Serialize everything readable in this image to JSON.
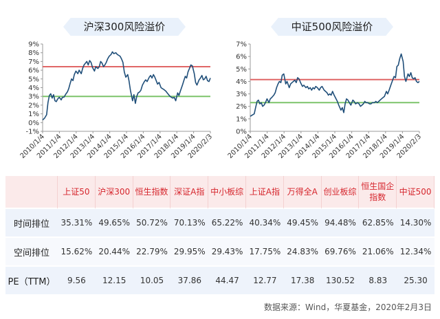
{
  "chart_data": [
    {
      "type": "line",
      "title": "沪深300风险溢价",
      "y_ticks": [
        "-1%",
        "0%",
        "1%",
        "2%",
        "3%",
        "4%",
        "5%",
        "6%",
        "7%",
        "8%",
        "9%"
      ],
      "ylim": [
        -1,
        9
      ],
      "x_ticks": [
        "2010/1/4",
        "2011/1/4",
        "2012/1/4",
        "2013/1/4",
        "2014/1/4",
        "2015/1/4",
        "2016/1/4",
        "2017/1/4",
        "2018/1/4",
        "2019/1/4",
        "2020/2/3"
      ],
      "xlim": [
        "2010-01-04",
        "2020-02-03"
      ],
      "reference_lines": [
        {
          "value": 6.4,
          "color": "#e06666"
        },
        {
          "value": 3.0,
          "color": "#7cc46a"
        }
      ],
      "series": [
        {
          "color": "#1f4e79",
          "points": [
            [
              "2010-01-04",
              0.3
            ],
            [
              "2010-02-15",
              0.5
            ],
            [
              "2010-04-01",
              0.9
            ],
            [
              "2010-05-01",
              2.3
            ],
            [
              "2010-06-01",
              3.1
            ],
            [
              "2010-07-01",
              3.3
            ],
            [
              "2010-08-01",
              2.8
            ],
            [
              "2010-09-01",
              3.2
            ],
            [
              "2010-10-01",
              2.5
            ],
            [
              "2010-11-01",
              2.4
            ],
            [
              "2010-12-01",
              2.7
            ],
            [
              "2011-01-04",
              2.9
            ],
            [
              "2011-02-15",
              2.6
            ],
            [
              "2011-03-15",
              2.9
            ],
            [
              "2011-04-15",
              2.9
            ],
            [
              "2011-06-01",
              3.3
            ],
            [
              "2011-07-01",
              3.5
            ],
            [
              "2011-08-01",
              3.9
            ],
            [
              "2011-09-01",
              4.5
            ],
            [
              "2011-10-01",
              5.0
            ],
            [
              "2011-11-01",
              4.8
            ],
            [
              "2011-12-01",
              5.5
            ],
            [
              "2012-01-04",
              5.9
            ],
            [
              "2012-02-15",
              5.6
            ],
            [
              "2012-03-15",
              6.0
            ],
            [
              "2012-05-01",
              5.6
            ],
            [
              "2012-06-01",
              6.2
            ],
            [
              "2012-07-01",
              6.6
            ],
            [
              "2012-08-01",
              6.8
            ],
            [
              "2012-09-01",
              7.0
            ],
            [
              "2012-10-01",
              6.6
            ],
            [
              "2012-11-01",
              7.1
            ],
            [
              "2012-12-01",
              6.9
            ],
            [
              "2013-01-04",
              6.3
            ],
            [
              "2013-02-15",
              5.9
            ],
            [
              "2013-03-15",
              6.4
            ],
            [
              "2013-05-01",
              6.2
            ],
            [
              "2013-06-01",
              6.4
            ],
            [
              "2013-07-01",
              7.0
            ],
            [
              "2013-08-01",
              6.8
            ],
            [
              "2013-09-01",
              6.4
            ],
            [
              "2013-10-01",
              6.6
            ],
            [
              "2013-11-01",
              6.9
            ],
            [
              "2013-12-01",
              7.3
            ],
            [
              "2014-01-04",
              7.6
            ],
            [
              "2014-02-15",
              7.8
            ],
            [
              "2014-03-15",
              8.1
            ],
            [
              "2014-04-15",
              7.9
            ],
            [
              "2014-06-01",
              8.0
            ],
            [
              "2014-07-01",
              7.8
            ],
            [
              "2014-08-01",
              7.7
            ],
            [
              "2014-09-01",
              7.6
            ],
            [
              "2014-10-01",
              7.3
            ],
            [
              "2014-11-01",
              6.9
            ],
            [
              "2014-12-01",
              5.8
            ],
            [
              "2015-01-04",
              5.2
            ],
            [
              "2015-02-15",
              5.5
            ],
            [
              "2015-03-15",
              4.8
            ],
            [
              "2015-04-15",
              3.7
            ],
            [
              "2015-06-01",
              2.5
            ],
            [
              "2015-07-01",
              3.2
            ],
            [
              "2015-08-01",
              2.2
            ],
            [
              "2015-09-01",
              3.0
            ],
            [
              "2015-10-01",
              3.4
            ],
            [
              "2015-11-01",
              3.5
            ],
            [
              "2015-12-01",
              3.7
            ],
            [
              "2016-01-04",
              4.3
            ],
            [
              "2016-02-15",
              4.7
            ],
            [
              "2016-03-15",
              4.9
            ],
            [
              "2016-04-15",
              4.7
            ],
            [
              "2016-06-01",
              5.2
            ],
            [
              "2016-07-01",
              5.4
            ],
            [
              "2016-08-01",
              5.1
            ],
            [
              "2016-09-01",
              5.5
            ],
            [
              "2016-10-01",
              5.2
            ],
            [
              "2016-11-01",
              4.8
            ],
            [
              "2016-12-01",
              4.4
            ],
            [
              "2017-01-04",
              4.6
            ],
            [
              "2017-02-15",
              4.0
            ],
            [
              "2017-03-15",
              3.9
            ],
            [
              "2017-04-15",
              3.8
            ],
            [
              "2017-06-01",
              3.6
            ],
            [
              "2017-07-01",
              3.4
            ],
            [
              "2017-08-01",
              3.2
            ],
            [
              "2017-09-01",
              3.0
            ],
            [
              "2017-10-01",
              2.9
            ],
            [
              "2017-11-01",
              2.8
            ],
            [
              "2017-12-01",
              2.9
            ],
            [
              "2018-01-04",
              2.5
            ],
            [
              "2018-02-15",
              3.4
            ],
            [
              "2018-03-15",
              3.1
            ],
            [
              "2018-04-15",
              3.6
            ],
            [
              "2018-06-01",
              4.3
            ],
            [
              "2018-07-01",
              4.8
            ],
            [
              "2018-08-01",
              5.3
            ],
            [
              "2018-09-01",
              5.1
            ],
            [
              "2018-10-01",
              5.8
            ],
            [
              "2018-11-01",
              6.2
            ],
            [
              "2018-12-01",
              6.6
            ],
            [
              "2019-01-04",
              6.5
            ],
            [
              "2019-02-15",
              5.6
            ],
            [
              "2019-03-15",
              4.6
            ],
            [
              "2019-04-15",
              4.3
            ],
            [
              "2019-06-01",
              4.9
            ],
            [
              "2019-07-01",
              5.1
            ],
            [
              "2019-08-01",
              5.4
            ],
            [
              "2019-09-01",
              4.9
            ],
            [
              "2019-10-01",
              5.0
            ],
            [
              "2019-11-01",
              5.3
            ],
            [
              "2019-12-01",
              4.8
            ],
            [
              "2020-01-04",
              4.7
            ],
            [
              "2020-02-03",
              5.1
            ]
          ]
        }
      ]
    },
    {
      "type": "line",
      "title": "中证500风险溢价",
      "y_ticks": [
        "0%",
        "1%",
        "2%",
        "3%",
        "4%",
        "5%",
        "6%",
        "7%"
      ],
      "ylim": [
        0,
        7
      ],
      "x_ticks": [
        "2010/1/4",
        "2011/1/4",
        "2012/1/4",
        "2013/1/4",
        "2014/1/4",
        "2015/1/4",
        "2016/1/4",
        "2017/1/4",
        "2018/1/4",
        "2019/1/4",
        "2020/2/3"
      ],
      "xlim": [
        "2010-01-04",
        "2020-02-03"
      ],
      "reference_lines": [
        {
          "value": 4.15,
          "color": "#e06666"
        },
        {
          "value": 2.3,
          "color": "#7cc46a"
        }
      ],
      "series": [
        {
          "color": "#1f4e79",
          "points": [
            [
              "2010-01-04",
              1.2
            ],
            [
              "2010-02-15",
              1.3
            ],
            [
              "2010-04-01",
              1.4
            ],
            [
              "2010-05-01",
              1.9
            ],
            [
              "2010-06-01",
              2.4
            ],
            [
              "2010-07-01",
              2.5
            ],
            [
              "2010-08-01",
              2.2
            ],
            [
              "2010-09-01",
              2.3
            ],
            [
              "2010-10-01",
              2.0
            ],
            [
              "2010-11-01",
              2.1
            ],
            [
              "2010-12-01",
              2.3
            ],
            [
              "2011-01-04",
              2.6
            ],
            [
              "2011-02-15",
              2.3
            ],
            [
              "2011-03-15",
              2.6
            ],
            [
              "2011-04-15",
              2.7
            ],
            [
              "2011-06-01",
              2.9
            ],
            [
              "2011-07-01",
              3.1
            ],
            [
              "2011-08-01",
              3.5
            ],
            [
              "2011-09-01",
              3.8
            ],
            [
              "2011-10-01",
              4.0
            ],
            [
              "2011-11-01",
              3.9
            ],
            [
              "2011-12-01",
              4.5
            ],
            [
              "2012-01-04",
              4.6
            ],
            [
              "2012-02-15",
              3.8
            ],
            [
              "2012-03-15",
              4.0
            ],
            [
              "2012-05-01",
              3.5
            ],
            [
              "2012-06-01",
              3.8
            ],
            [
              "2012-07-01",
              3.9
            ],
            [
              "2012-08-01",
              4.0
            ],
            [
              "2012-09-01",
              4.1
            ],
            [
              "2012-10-01",
              3.9
            ],
            [
              "2012-11-01",
              4.3
            ],
            [
              "2012-12-01",
              4.2
            ],
            [
              "2013-01-04",
              3.9
            ],
            [
              "2013-02-15",
              3.6
            ],
            [
              "2013-03-15",
              3.7
            ],
            [
              "2013-05-01",
              3.5
            ],
            [
              "2013-06-01",
              3.6
            ],
            [
              "2013-07-01",
              3.4
            ],
            [
              "2013-08-01",
              3.5
            ],
            [
              "2013-09-01",
              3.3
            ],
            [
              "2013-10-01",
              3.5
            ],
            [
              "2013-11-01",
              3.4
            ],
            [
              "2013-12-01",
              3.6
            ],
            [
              "2014-01-04",
              3.5
            ],
            [
              "2014-02-15",
              3.3
            ],
            [
              "2014-03-15",
              3.5
            ],
            [
              "2014-04-15",
              3.6
            ],
            [
              "2014-06-01",
              3.3
            ],
            [
              "2014-07-01",
              3.2
            ],
            [
              "2014-08-01",
              3.1
            ],
            [
              "2014-09-01",
              2.9
            ],
            [
              "2014-10-01",
              3.0
            ],
            [
              "2014-11-01",
              2.9
            ],
            [
              "2014-12-01",
              3.2
            ],
            [
              "2015-01-04",
              2.9
            ],
            [
              "2015-02-15",
              2.6
            ],
            [
              "2015-03-15",
              2.4
            ],
            [
              "2015-04-15",
              2.1
            ],
            [
              "2015-06-01",
              1.7
            ],
            [
              "2015-07-01",
              1.9
            ],
            [
              "2015-08-01",
              1.5
            ],
            [
              "2015-09-01",
              2.2
            ],
            [
              "2015-10-01",
              2.6
            ],
            [
              "2015-11-01",
              2.5
            ],
            [
              "2015-12-01",
              2.3
            ],
            [
              "2016-01-04",
              2.1
            ],
            [
              "2016-02-15",
              2.5
            ],
            [
              "2016-03-15",
              2.4
            ],
            [
              "2016-04-15",
              2.2
            ],
            [
              "2016-06-01",
              2.3
            ],
            [
              "2016-07-01",
              2.2
            ],
            [
              "2016-08-01",
              2.0
            ],
            [
              "2016-09-01",
              2.1
            ],
            [
              "2016-10-01",
              2.2
            ],
            [
              "2016-11-01",
              2.4
            ],
            [
              "2016-12-01",
              2.3
            ],
            [
              "2017-01-04",
              2.3
            ],
            [
              "2017-02-15",
              2.2
            ],
            [
              "2017-03-15",
              2.2
            ],
            [
              "2017-04-15",
              2.3
            ],
            [
              "2017-06-01",
              2.3
            ],
            [
              "2017-07-01",
              2.4
            ],
            [
              "2017-08-01",
              2.3
            ],
            [
              "2017-09-01",
              2.4
            ],
            [
              "2017-10-01",
              2.5
            ],
            [
              "2017-11-01",
              2.6
            ],
            [
              "2017-12-01",
              2.7
            ],
            [
              "2018-01-04",
              2.8
            ],
            [
              "2018-02-15",
              3.2
            ],
            [
              "2018-03-15",
              3.0
            ],
            [
              "2018-04-15",
              3.3
            ],
            [
              "2018-06-01",
              3.8
            ],
            [
              "2018-07-01",
              4.1
            ],
            [
              "2018-08-01",
              4.4
            ],
            [
              "2018-09-01",
              4.3
            ],
            [
              "2018-10-01",
              5.2
            ],
            [
              "2018-11-01",
              5.3
            ],
            [
              "2018-12-01",
              5.8
            ],
            [
              "2019-01-04",
              6.2
            ],
            [
              "2019-02-15",
              5.6
            ],
            [
              "2019-03-15",
              4.4
            ],
            [
              "2019-04-15",
              4.0
            ],
            [
              "2019-06-01",
              4.6
            ],
            [
              "2019-07-01",
              4.4
            ],
            [
              "2019-08-01",
              4.7
            ],
            [
              "2019-09-01",
              4.3
            ],
            [
              "2019-10-01",
              4.2
            ],
            [
              "2019-11-01",
              4.3
            ],
            [
              "2019-12-01",
              4.0
            ],
            [
              "2020-01-04",
              3.9
            ],
            [
              "2020-02-03",
              4.0
            ]
          ]
        }
      ]
    }
  ],
  "table": {
    "columns": [
      "上证50",
      "沪深300",
      "恒生指数",
      "深证A指",
      "中小板综",
      "上证A指",
      "万得全A",
      "创业板综",
      "恒生国企\n指数",
      "中证500"
    ],
    "rows": [
      {
        "label": "时间排位",
        "values": [
          "35.31%",
          "49.65%",
          "50.72%",
          "70.13%",
          "65.22%",
          "40.34%",
          "49.45%",
          "94.48%",
          "62.85%",
          "14.30%"
        ]
      },
      {
        "label": "空间排位",
        "values": [
          "15.62%",
          "20.44%",
          "22.79%",
          "29.95%",
          "29.43%",
          "17.75%",
          "24.83%",
          "69.76%",
          "21.06%",
          "12.34%"
        ]
      },
      {
        "label": "PE（TTM）",
        "values": [
          "9.56",
          "12.15",
          "10.05",
          "37.86",
          "44.47",
          "12.77",
          "17.38",
          "130.52",
          "8.83",
          "25.30"
        ]
      }
    ]
  },
  "source": "数据来源：Wind，华夏基金，2020年2月3日"
}
